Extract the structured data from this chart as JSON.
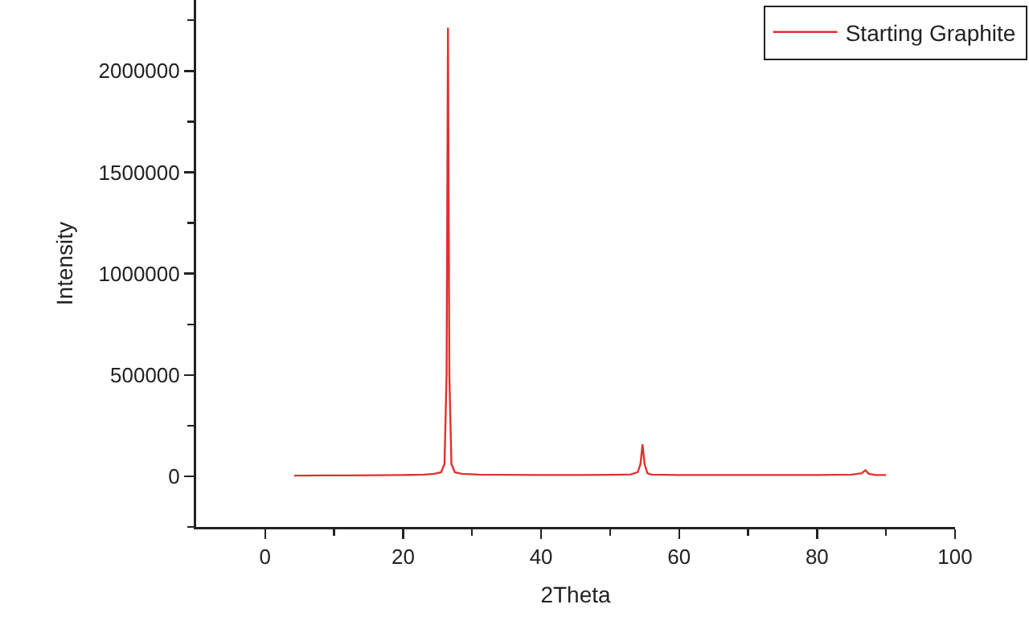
{
  "chart_data": {
    "type": "line",
    "xlabel": "2Theta",
    "ylabel": "Intensity",
    "legend": "top right",
    "grid": false,
    "x": [
      4.2,
      8,
      12,
      16,
      20,
      23,
      24.5,
      25.5,
      26.0,
      26.3,
      26.5,
      26.7,
      27.0,
      27.5,
      28.5,
      31,
      35,
      40,
      45,
      50,
      53,
      54.0,
      54.4,
      54.7,
      55.0,
      55.4,
      56,
      60,
      65,
      70,
      75,
      80,
      85,
      86.5,
      87.0,
      87.5,
      88.5,
      90
    ],
    "series": [
      {
        "name": "Starting Graphite",
        "color": "#e0312f",
        "values": [
          3000,
          4000,
          4000,
          5000,
          6000,
          8000,
          12000,
          20000,
          60000,
          500000,
          2213000,
          500000,
          60000,
          20000,
          12000,
          8000,
          7000,
          6000,
          6000,
          7000,
          9000,
          20000,
          60000,
          158000,
          60000,
          15000,
          8000,
          6000,
          6000,
          6000,
          6000,
          6000,
          8000,
          15000,
          30000,
          12000,
          6000,
          6000
        ]
      }
    ],
    "xlim": [
      -10,
      100
    ],
    "xticks": [
      0,
      {
        "value": 10,
        "label": null
      },
      20,
      {
        "value": 30,
        "label": null
      },
      40,
      {
        "value": 50,
        "label": null
      },
      60,
      {
        "value": 70,
        "label": null
      },
      80,
      {
        "value": 90,
        "label": null
      },
      100
    ],
    "ylim": [
      -250000,
      2350000
    ],
    "yticks": [
      {
        "value": -250000,
        "label": null
      },
      0,
      {
        "value": 250000,
        "label": null
      },
      500000,
      {
        "value": 750000,
        "label": null
      },
      1000000,
      {
        "value": 1250000,
        "label": null
      },
      1500000,
      {
        "value": 1750000,
        "label": null
      },
      2000000,
      {
        "value": 2250000,
        "label": null
      }
    ]
  }
}
